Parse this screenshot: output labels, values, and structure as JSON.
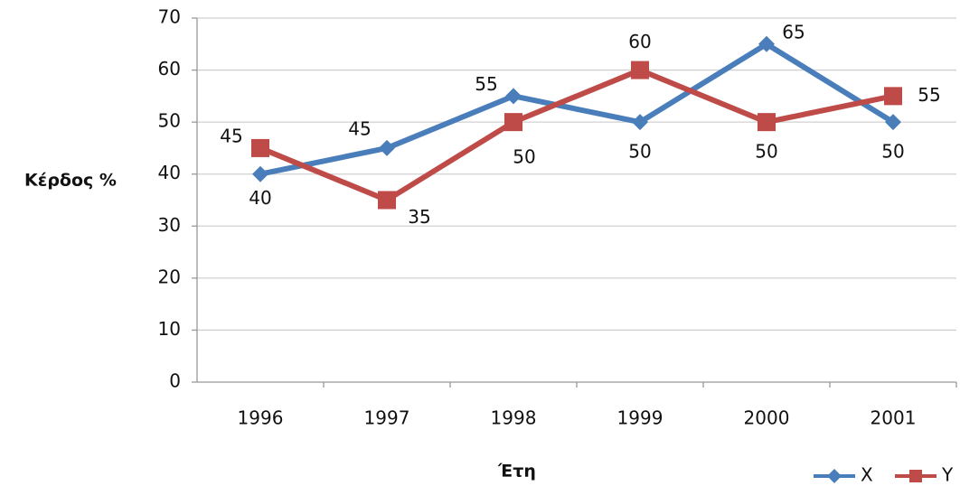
{
  "chart_data": {
    "type": "line",
    "x_label": "Έτη",
    "y_label": "Κέρδος %",
    "categories": [
      "1996",
      "1997",
      "1998",
      "1999",
      "2000",
      "2001"
    ],
    "series": [
      {
        "name": "X",
        "color": "#4a7ebb",
        "marker": "diamond",
        "values": [
          40,
          45,
          55,
          50,
          65,
          50
        ]
      },
      {
        "name": "Y",
        "color": "#be4b48",
        "marker": "square",
        "values": [
          45,
          35,
          50,
          60,
          50,
          55
        ]
      }
    ],
    "ylim": [
      0,
      70
    ],
    "yticks": [
      0,
      10,
      20,
      30,
      40,
      50,
      60,
      70
    ],
    "grid": true,
    "legend": "bottom-right"
  }
}
